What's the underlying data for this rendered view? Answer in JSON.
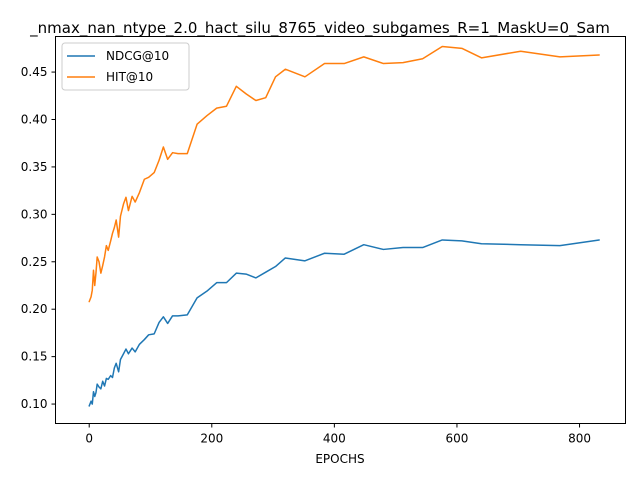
{
  "chart_data": {
    "type": "line",
    "title": "_nmax_nan_ntype_2.0_hact_silu_8765_video_subgames_R=1_MaskU=0_Sam",
    "xlabel": "EPOCHS",
    "ylabel": "",
    "xlim": [
      -55,
      875
    ],
    "ylim": [
      0.0795,
      0.4875
    ],
    "x_ticks": [
      0,
      200,
      400,
      600,
      800
    ],
    "y_ticks": [
      0.1,
      0.15,
      0.2,
      0.25,
      0.3,
      0.35,
      0.4,
      0.45
    ],
    "grid": false,
    "legend_position": "upper-left",
    "colors": {
      "NDCG@10": "#1f77b4",
      "HIT@10": "#ff7f0e"
    },
    "series": [
      {
        "name": "NDCG@10",
        "points": [
          [
            0,
            0.098
          ],
          [
            3,
            0.103
          ],
          [
            5,
            0.1
          ],
          [
            7,
            0.113
          ],
          [
            9,
            0.108
          ],
          [
            11,
            0.112
          ],
          [
            13,
            0.121
          ],
          [
            16,
            0.118
          ],
          [
            19,
            0.116
          ],
          [
            22,
            0.124
          ],
          [
            25,
            0.119
          ],
          [
            28,
            0.127
          ],
          [
            31,
            0.126
          ],
          [
            35,
            0.13
          ],
          [
            38,
            0.128
          ],
          [
            41,
            0.138
          ],
          [
            44,
            0.143
          ],
          [
            48,
            0.134
          ],
          [
            51,
            0.147
          ],
          [
            56,
            0.153
          ],
          [
            60,
            0.158
          ],
          [
            64,
            0.153
          ],
          [
            70,
            0.159
          ],
          [
            75,
            0.155
          ],
          [
            82,
            0.163
          ],
          [
            90,
            0.168
          ],
          [
            97,
            0.173
          ],
          [
            106,
            0.174
          ],
          [
            114,
            0.186
          ],
          [
            121,
            0.192
          ],
          [
            128,
            0.185
          ],
          [
            136,
            0.193
          ],
          [
            145,
            0.193
          ],
          [
            160,
            0.194
          ],
          [
            176,
            0.212
          ],
          [
            192,
            0.219
          ],
          [
            208,
            0.228
          ],
          [
            224,
            0.228
          ],
          [
            240,
            0.238
          ],
          [
            256,
            0.237
          ],
          [
            272,
            0.233
          ],
          [
            288,
            0.239
          ],
          [
            304,
            0.245
          ],
          [
            320,
            0.254
          ],
          [
            352,
            0.251
          ],
          [
            384,
            0.259
          ],
          [
            416,
            0.258
          ],
          [
            448,
            0.268
          ],
          [
            480,
            0.263
          ],
          [
            512,
            0.265
          ],
          [
            544,
            0.265
          ],
          [
            576,
            0.273
          ],
          [
            608,
            0.272
          ],
          [
            640,
            0.269
          ],
          [
            704,
            0.268
          ],
          [
            768,
            0.267
          ],
          [
            832,
            0.273
          ]
        ]
      },
      {
        "name": "HIT@10",
        "points": [
          [
            0,
            0.208
          ],
          [
            3,
            0.213
          ],
          [
            5,
            0.22
          ],
          [
            7,
            0.241
          ],
          [
            9,
            0.225
          ],
          [
            11,
            0.238
          ],
          [
            13,
            0.255
          ],
          [
            16,
            0.25
          ],
          [
            19,
            0.238
          ],
          [
            22,
            0.246
          ],
          [
            25,
            0.255
          ],
          [
            28,
            0.267
          ],
          [
            31,
            0.262
          ],
          [
            35,
            0.272
          ],
          [
            38,
            0.28
          ],
          [
            41,
            0.286
          ],
          [
            44,
            0.294
          ],
          [
            48,
            0.276
          ],
          [
            51,
            0.298
          ],
          [
            56,
            0.311
          ],
          [
            60,
            0.318
          ],
          [
            64,
            0.304
          ],
          [
            70,
            0.319
          ],
          [
            75,
            0.313
          ],
          [
            82,
            0.323
          ],
          [
            90,
            0.337
          ],
          [
            97,
            0.339
          ],
          [
            106,
            0.344
          ],
          [
            114,
            0.357
          ],
          [
            121,
            0.371
          ],
          [
            128,
            0.358
          ],
          [
            136,
            0.365
          ],
          [
            145,
            0.364
          ],
          [
            160,
            0.364
          ],
          [
            176,
            0.395
          ],
          [
            192,
            0.404
          ],
          [
            208,
            0.412
          ],
          [
            224,
            0.414
          ],
          [
            240,
            0.435
          ],
          [
            256,
            0.427
          ],
          [
            272,
            0.42
          ],
          [
            288,
            0.423
          ],
          [
            304,
            0.445
          ],
          [
            320,
            0.453
          ],
          [
            352,
            0.445
          ],
          [
            384,
            0.459
          ],
          [
            416,
            0.459
          ],
          [
            448,
            0.466
          ],
          [
            480,
            0.459
          ],
          [
            512,
            0.46
          ],
          [
            544,
            0.464
          ],
          [
            576,
            0.477
          ],
          [
            608,
            0.475
          ],
          [
            640,
            0.465
          ],
          [
            704,
            0.472
          ],
          [
            768,
            0.466
          ],
          [
            832,
            0.468
          ]
        ]
      }
    ]
  }
}
